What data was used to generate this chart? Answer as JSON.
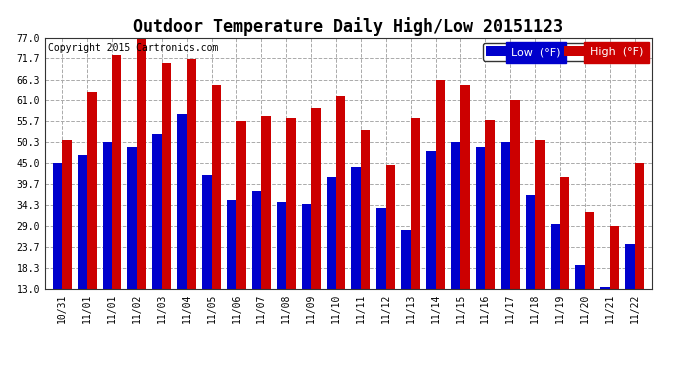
{
  "title": "Outdoor Temperature Daily High/Low 20151123",
  "copyright": "Copyright 2015 Cartronics.com",
  "legend_low": "Low  (°F)",
  "legend_high": "High  (°F)",
  "dates": [
    "10/31",
    "11/01",
    "11/01",
    "11/02",
    "11/03",
    "11/04",
    "11/05",
    "11/06",
    "11/07",
    "11/08",
    "11/09",
    "11/10",
    "11/11",
    "11/12",
    "11/13",
    "11/14",
    "11/15",
    "11/16",
    "11/17",
    "11/18",
    "11/19",
    "11/20",
    "11/21",
    "11/22"
  ],
  "high_values": [
    51.0,
    63.0,
    72.5,
    77.0,
    70.5,
    71.5,
    65.0,
    55.7,
    57.0,
    56.5,
    59.0,
    62.0,
    53.5,
    44.5,
    56.5,
    66.3,
    65.0,
    56.0,
    61.0,
    51.0,
    41.5,
    32.5,
    29.0,
    45.0
  ],
  "low_values": [
    45.0,
    47.0,
    50.3,
    49.0,
    52.5,
    57.5,
    42.0,
    35.5,
    38.0,
    35.0,
    34.5,
    41.5,
    44.0,
    33.5,
    28.0,
    48.0,
    50.5,
    49.0,
    50.5,
    37.0,
    29.5,
    19.0,
    13.5,
    24.5
  ],
  "ylim_min": 13.0,
  "ylim_max": 77.0,
  "ytick_values": [
    13.0,
    18.3,
    23.7,
    29.0,
    34.3,
    39.7,
    45.0,
    50.3,
    55.7,
    61.0,
    66.3,
    71.7,
    77.0
  ],
  "bar_color_low": "#0000cc",
  "bar_color_high": "#cc0000",
  "bg_color": "#ffffff",
  "grid_color": "#aaaaaa",
  "title_fontsize": 12,
  "tick_fontsize": 7,
  "copyright_fontsize": 7
}
